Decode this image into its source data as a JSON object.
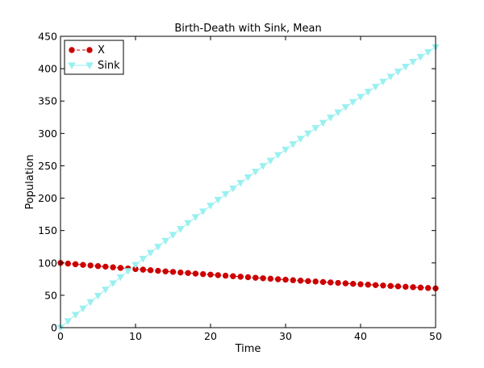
{
  "chart_data": {
    "type": "line",
    "title": "Birth-Death with Sink, Mean",
    "xlabel": "Time",
    "ylabel": "Population",
    "xlim": [
      0,
      50
    ],
    "ylim": [
      0,
      450
    ],
    "x_ticks": [
      0,
      10,
      20,
      30,
      40,
      50
    ],
    "y_ticks": [
      0,
      50,
      100,
      150,
      200,
      250,
      300,
      350,
      400,
      450
    ],
    "grid": false,
    "legend_position": "top-left",
    "x": [
      0,
      1,
      2,
      3,
      4,
      5,
      6,
      7,
      8,
      9,
      10,
      11,
      12,
      13,
      14,
      15,
      16,
      17,
      18,
      19,
      20,
      21,
      22,
      23,
      24,
      25,
      26,
      27,
      28,
      29,
      30,
      31,
      32,
      33,
      34,
      35,
      36,
      37,
      38,
      39,
      40,
      41,
      42,
      43,
      44,
      45,
      46,
      47,
      48,
      49,
      50
    ],
    "series": [
      {
        "name": "X",
        "color": "#cc0000",
        "marker": "circle",
        "line_style": "dashed",
        "values": [
          100.0,
          99.0,
          98.0,
          97.0,
          96.1,
          95.1,
          94.2,
          93.2,
          92.3,
          91.4,
          90.5,
          89.6,
          88.7,
          87.8,
          86.9,
          86.1,
          85.2,
          84.4,
          83.5,
          82.7,
          81.9,
          81.1,
          80.3,
          79.5,
          78.7,
          77.9,
          77.1,
          76.3,
          75.6,
          74.8,
          74.1,
          73.3,
          72.6,
          71.9,
          71.2,
          70.5,
          69.8,
          69.1,
          68.4,
          67.7,
          67.0,
          66.4,
          65.7,
          65.1,
          64.4,
          63.8,
          63.1,
          62.5,
          61.9,
          61.3,
          60.7
        ]
      },
      {
        "name": "Sink",
        "color": "#99f0f0",
        "marker": "triangle-down",
        "line_style": "solid",
        "values": [
          0,
          9.9,
          19.8,
          29.6,
          39.4,
          49.1,
          58.7,
          68.4,
          77.9,
          87.4,
          96.9,
          106.3,
          115.6,
          124.9,
          134.1,
          143.3,
          152.4,
          161.5,
          170.5,
          179.5,
          188.4,
          197.3,
          206.1,
          214.9,
          223.6,
          232.3,
          240.9,
          249.5,
          258.0,
          266.5,
          274.9,
          283.3,
          291.6,
          299.9,
          308.1,
          316.3,
          324.4,
          332.5,
          340.5,
          348.5,
          356.4,
          364.3,
          372.1,
          379.9,
          387.7,
          395.4,
          403.0,
          410.6,
          418.2,
          425.7,
          433.2
        ]
      }
    ]
  }
}
